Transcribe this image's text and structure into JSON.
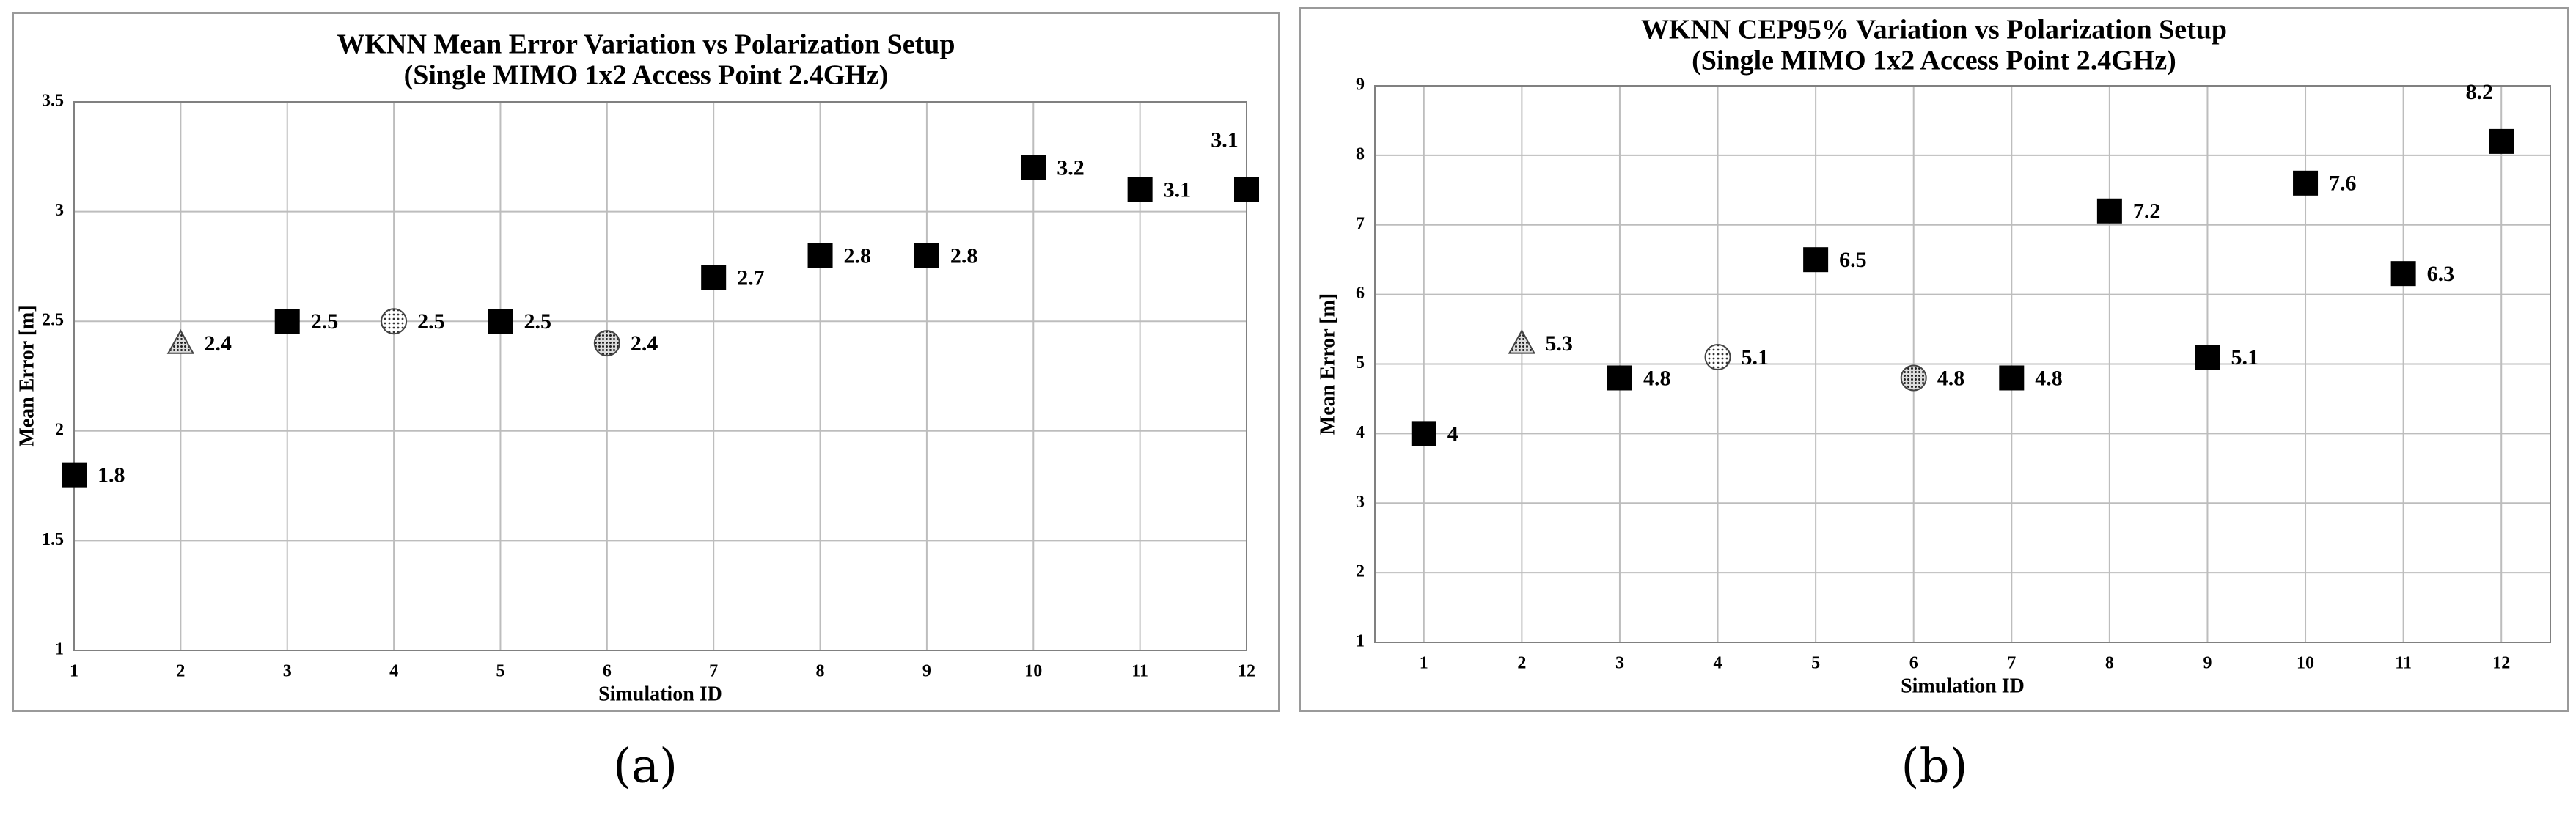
{
  "chart_data": [
    {
      "type": "scatter",
      "title": "WKNN Mean Error Variation vs Polarization Setup",
      "subtitle": "(Single MIMO 1x2 Access Point 2.4GHz)",
      "xlabel": "Simulation  ID",
      "ylabel": "Mean Error [m]",
      "caption": "(a)",
      "x": [
        1,
        2,
        3,
        4,
        5,
        6,
        7,
        8,
        9,
        10,
        11,
        12
      ],
      "series": [
        {
          "color": "#000000",
          "values": [
            1.8,
            2.4,
            2.5,
            2.5,
            2.5,
            2.4,
            2.7,
            2.8,
            2.8,
            3.2,
            3.1,
            3.1
          ],
          "markers": [
            "square",
            "triangle",
            "square",
            "circle",
            "square",
            "circle",
            "square",
            "square",
            "square",
            "square",
            "square",
            "square"
          ]
        }
      ],
      "xlim": [
        1,
        12
      ],
      "xticks": [
        1,
        2,
        3,
        4,
        5,
        6,
        7,
        8,
        9,
        10,
        11,
        12
      ],
      "ylim": [
        1,
        3.5
      ],
      "yticks": [
        1,
        1.5,
        2,
        2.5,
        3,
        3.5
      ],
      "grid": true
    },
    {
      "type": "scatter",
      "title": "WKNN CEP95% Variation vs Polarization Setup",
      "subtitle": "(Single MIMO 1x2 Access Point 2.4GHz)",
      "xlabel": "Simulation  ID",
      "ylabel": "Mean Error [m]",
      "caption": "(b)",
      "x": [
        1,
        2,
        3,
        4,
        5,
        6,
        7,
        8,
        9,
        10,
        11,
        12
      ],
      "series": [
        {
          "color": "#000000",
          "values": [
            4,
            5.3,
            4.8,
            5.1,
            6.5,
            4.8,
            4.8,
            7.2,
            5.1,
            7.6,
            6.3,
            8.2
          ],
          "markers": [
            "square",
            "triangle",
            "square",
            "circle",
            "square",
            "circle",
            "square",
            "square",
            "square",
            "square",
            "square",
            "square"
          ]
        }
      ],
      "xlim": [
        0.5,
        12.5
      ],
      "xticks": [
        1,
        2,
        3,
        4,
        5,
        6,
        7,
        8,
        9,
        10,
        11,
        12
      ],
      "ylim": [
        1,
        9
      ],
      "yticks": [
        1,
        2,
        3,
        4,
        5,
        6,
        7,
        8,
        9
      ],
      "grid": true
    }
  ]
}
